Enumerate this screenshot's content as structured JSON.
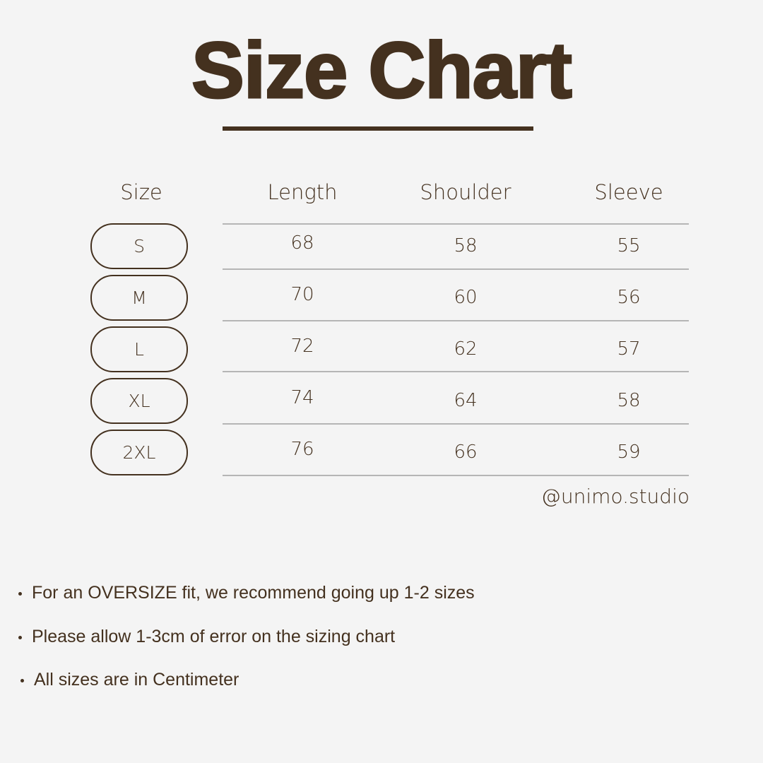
{
  "title": "Size Chart",
  "headers": [
    "Size",
    "Length",
    "Shoulder",
    "Sleeve"
  ],
  "rows": [
    {
      "size": "S",
      "length": "68",
      "shoulder": "58",
      "sleeve": "55"
    },
    {
      "size": "M",
      "length": "70",
      "shoulder": "60",
      "sleeve": "56"
    },
    {
      "size": "L",
      "length": "72",
      "shoulder": "62",
      "sleeve": "57"
    },
    {
      "size": "XL",
      "length": "74",
      "shoulder": "64",
      "sleeve": "58"
    },
    {
      "size": "2XL",
      "length": "76",
      "shoulder": "66",
      "sleeve": "59"
    }
  ],
  "handle": "@unimo.studio",
  "notes": [
    "For an OVERSIZE fit, we recommend going up 1-2 sizes",
    "Please allow 1-3cm of error on the sizing chart",
    "All sizes are in Centimeter"
  ],
  "colors": {
    "background": "#f4f4f4",
    "text": "#44311f",
    "divider": "#b5b5b5"
  }
}
